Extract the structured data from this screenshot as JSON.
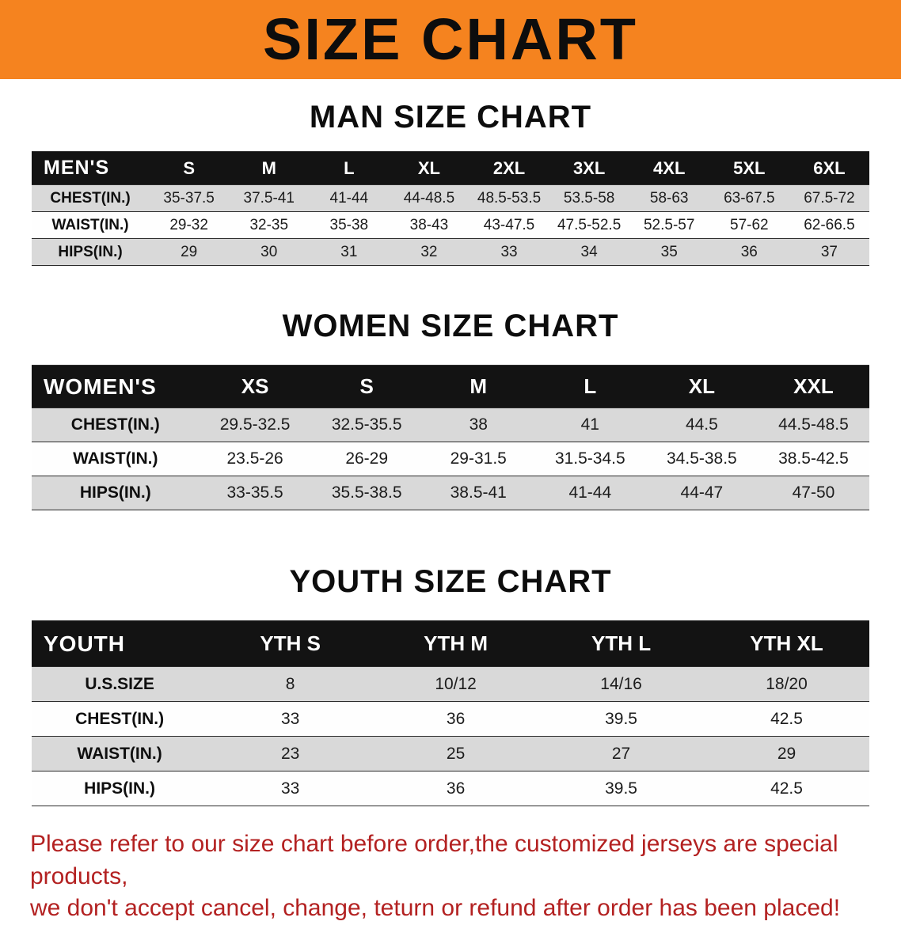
{
  "banner": {
    "title": "SIZE CHART"
  },
  "colors": {
    "banner_bg": "#F5831F",
    "table_header_bg": "#131313",
    "row_alt_gray": "#D9D9D9",
    "disclaimer_red": "#B32121"
  },
  "sections": [
    {
      "id": "men",
      "heading": "MAN SIZE CHART",
      "table": {
        "label_header": "MEN'S",
        "columns": [
          "S",
          "M",
          "L",
          "XL",
          "2XL",
          "3XL",
          "4XL",
          "5XL",
          "6XL"
        ],
        "rows": [
          {
            "label": "CHEST(IN.)",
            "values": [
              "35-37.5",
              "37.5-41",
              "41-44",
              "44-48.5",
              "48.5-53.5",
              "53.5-58",
              "58-63",
              "63-67.5",
              "67.5-72"
            ]
          },
          {
            "label": "WAIST(IN.)",
            "values": [
              "29-32",
              "32-35",
              "35-38",
              "38-43",
              "43-47.5",
              "47.5-52.5",
              "52.5-57",
              "57-62",
              "62-66.5"
            ]
          },
          {
            "label": "HIPS(IN.)",
            "values": [
              "29",
              "30",
              "31",
              "32",
              "33",
              "34",
              "35",
              "36",
              "37"
            ]
          }
        ]
      }
    },
    {
      "id": "women",
      "heading": "WOMEN SIZE CHART",
      "table": {
        "label_header": "WOMEN'S",
        "columns": [
          "XS",
          "S",
          "M",
          "L",
          "XL",
          "XXL"
        ],
        "rows": [
          {
            "label": "CHEST(IN.)",
            "values": [
              "29.5-32.5",
              "32.5-35.5",
              "38",
              "41",
              "44.5",
              "44.5-48.5"
            ]
          },
          {
            "label": "WAIST(IN.)",
            "values": [
              "23.5-26",
              "26-29",
              "29-31.5",
              "31.5-34.5",
              "34.5-38.5",
              "38.5-42.5"
            ]
          },
          {
            "label": "HIPS(IN.)",
            "values": [
              "33-35.5",
              "35.5-38.5",
              "38.5-41",
              "41-44",
              "44-47",
              "47-50"
            ]
          }
        ]
      }
    },
    {
      "id": "youth",
      "heading": "YOUTH SIZE CHART",
      "table": {
        "label_header": "YOUTH",
        "columns": [
          "YTH S",
          "YTH M",
          "YTH L",
          "YTH XL"
        ],
        "rows": [
          {
            "label": "U.S.SIZE",
            "values": [
              "8",
              "10/12",
              "14/16",
              "18/20"
            ]
          },
          {
            "label": "CHEST(IN.)",
            "values": [
              "33",
              "36",
              "39.5",
              "42.5"
            ]
          },
          {
            "label": "WAIST(IN.)",
            "values": [
              "23",
              "25",
              "27",
              "29"
            ]
          },
          {
            "label": "HIPS(IN.)",
            "values": [
              "33",
              "36",
              "39.5",
              "42.5"
            ]
          }
        ]
      }
    }
  ],
  "disclaimer": {
    "line1": "Please refer to our size chart before order,the customized jerseys are special products,",
    "line2": "we don't accept cancel, change, teturn or refund after order has been placed!"
  }
}
